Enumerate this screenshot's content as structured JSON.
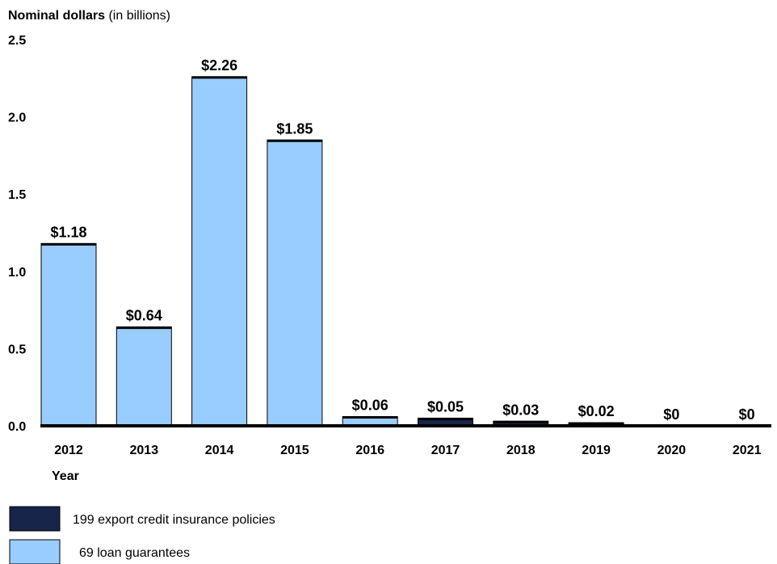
{
  "chart_data": {
    "type": "bar",
    "ylabel_bold": "Nominal dollars",
    "ylabel_rest": " (in billions)",
    "xlabel": "Year",
    "ylim": [
      0,
      2.5
    ],
    "yticks": [
      "0.0",
      "0.5",
      "1.0",
      "1.5",
      "2.0",
      "2.5"
    ],
    "ytick_values": [
      0,
      0.5,
      1.0,
      1.5,
      2.0,
      2.5
    ],
    "categories": [
      "2012",
      "2013",
      "2014",
      "2015",
      "2016",
      "2017",
      "2018",
      "2019",
      "2020",
      "2021"
    ],
    "series": [
      {
        "name": "69 loan guarantees",
        "color": "#99ccff",
        "values": [
          1.18,
          0.64,
          2.26,
          1.85,
          0.06,
          0,
          0,
          0,
          0,
          0
        ]
      },
      {
        "name": "199 export credit insurance policies",
        "color": "#17254a",
        "values": [
          0,
          0,
          0,
          0,
          0,
          0.05,
          0.03,
          0.02,
          0,
          0
        ]
      }
    ],
    "data_labels": [
      "$1.18",
      "$0.64",
      "$2.26",
      "$1.85",
      "$0.06",
      "$0.05",
      "$0.03",
      "$0.02",
      "$0",
      "$0"
    ],
    "legend": [
      {
        "label": "199 export credit insurance policies",
        "color": "#17254a"
      },
      {
        "label": "69 loan guarantees",
        "color": "#99ccff"
      }
    ],
    "legend_placement": "bottom-left",
    "grid": false
  }
}
